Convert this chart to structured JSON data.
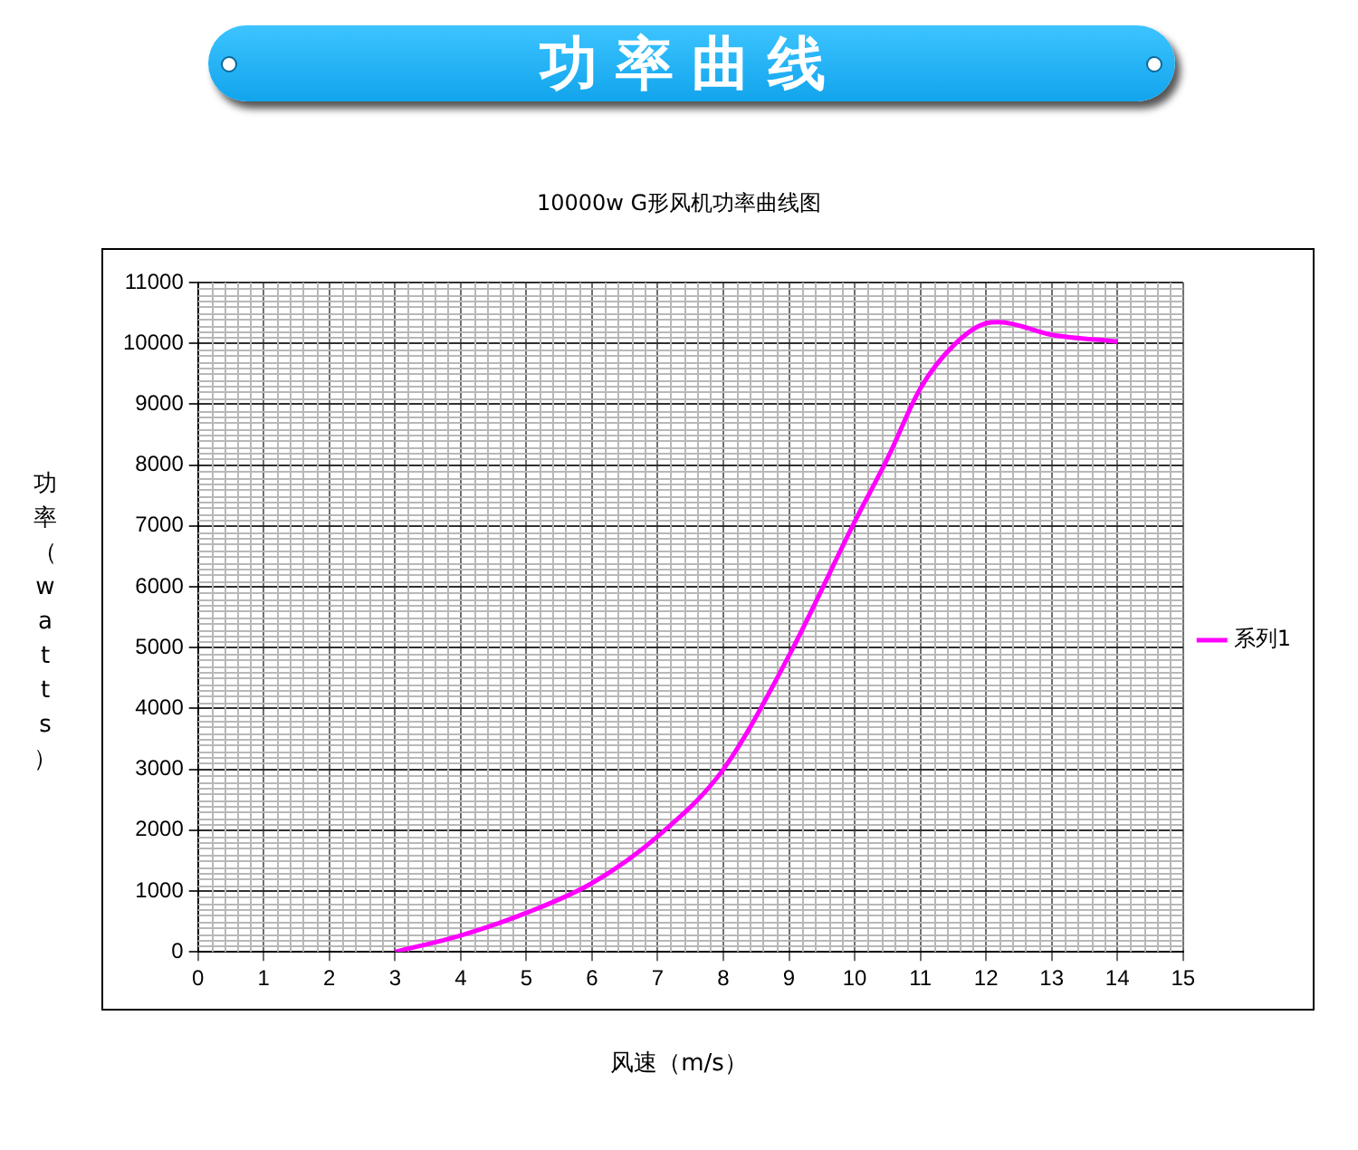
{
  "chart_data": {
    "type": "line",
    "title": "功率曲线",
    "subtitle": "10000w G形风机功率曲线图",
    "xlabel": "风速（m/s）",
    "ylabel": "功率（watts）",
    "x": [
      3,
      4,
      5,
      6,
      7,
      8,
      9,
      10,
      10.5,
      11,
      11.5,
      12,
      12.2,
      13,
      14
    ],
    "series": [
      {
        "name": "系列1",
        "color": "#ff00ff",
        "values": [
          0,
          270,
          640,
          1130,
          1900,
          3000,
          4870,
          7070,
          8110,
          9260,
          9960,
          10330,
          10350,
          10140,
          10030
        ]
      }
    ],
    "xlim": [
      0,
      15
    ],
    "xticks": [
      0,
      1,
      2,
      3,
      4,
      5,
      6,
      7,
      8,
      9,
      10,
      11,
      12,
      13,
      14,
      15
    ],
    "ylim": [
      0,
      11000
    ],
    "yticks": [
      0,
      1000,
      2000,
      3000,
      4000,
      5000,
      6000,
      7000,
      8000,
      9000,
      10000,
      11000
    ],
    "grid": true,
    "legend": "right",
    "marker": "none",
    "line_style": "solid"
  }
}
